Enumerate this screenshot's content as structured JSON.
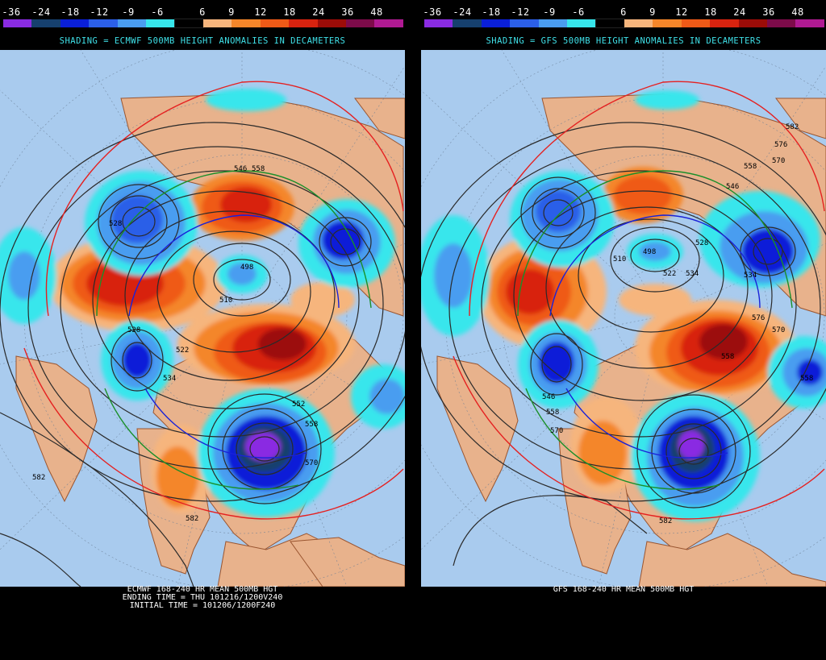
{
  "color_scale": {
    "labels": [
      "-36",
      "-24",
      "-18",
      "-12",
      "-9",
      "-6",
      "6",
      "9",
      "12",
      "18",
      "24",
      "36",
      "48"
    ],
    "colors": [
      "#8a2be2",
      "#16406e",
      "#0a1fd8",
      "#2b5fe8",
      "#4a9df0",
      "#37e6ec",
      "#000000",
      "#f6b57d",
      "#f4862a",
      "#ef5a17",
      "#d8230f",
      "#9c0c08",
      "#7d0b4a",
      "#b01a93"
    ]
  },
  "panels": [
    {
      "subtitle": "SHADING = ECMWF 500MB HEIGHT ANOMALIES IN DECAMETERS",
      "caption": [
        "ECMWF 168-240 HR MEAN 500MB HGT",
        "ENDING TIME = THU 101216/1200V240",
        "INITIAL TIME = 101206/1200F240"
      ],
      "contour_labels": [
        "582",
        "582",
        "546",
        "558",
        "528",
        "498",
        "510",
        "522",
        "528",
        "534",
        "552",
        "558",
        "570"
      ]
    },
    {
      "subtitle": "SHADING = GFS 500MB HEIGHT ANOMALIES IN DECAMETERS",
      "caption": [
        "GFS 168-240 HR MEAN 500MB HGT"
      ],
      "contour_labels": [
        "582",
        "576",
        "570",
        "558",
        "546",
        "528",
        "498",
        "510",
        "534",
        "522",
        "534",
        "546",
        "558",
        "570",
        "576",
        "570",
        "558",
        "558",
        "582"
      ]
    }
  ]
}
